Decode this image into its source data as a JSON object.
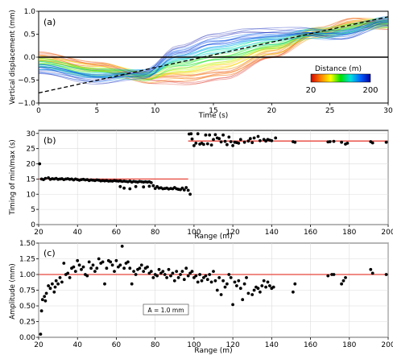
{
  "chart_data": [
    {
      "type": "line",
      "panel_label": "(a)",
      "xlabel": "Time (s)",
      "ylabel": "Vertical displacement (mm)",
      "xlim": [
        0,
        30
      ],
      "ylim": [
        -1.0,
        1.0
      ],
      "xticks": [
        0,
        5,
        10,
        15,
        20,
        25,
        30
      ],
      "xtick_labels": [
        "0",
        "5",
        "10",
        "15",
        "20",
        "25",
        "30"
      ],
      "yticks": [
        -1.0,
        -0.5,
        0.0,
        0.5,
        1.0
      ],
      "ytick_labels": [
        "−1.0",
        "−0.5",
        "0.0",
        "0.5",
        "1.0"
      ],
      "grid": false,
      "colorbar": {
        "title": "Distance (m)",
        "min_label": "20",
        "max_label": "200",
        "range": [
          20,
          200
        ],
        "colormap": [
          "#d00000",
          "#ff8000",
          "#ffff00",
          "#00e000",
          "#00e0e0",
          "#0060ff",
          "#0000a0"
        ]
      },
      "series": [
        {
          "style": "dashed",
          "color": "#000000",
          "x": [
            0,
            30
          ],
          "y": [
            -0.78,
            0.88
          ]
        },
        {
          "style": "solid",
          "color": "#000000",
          "x": [
            0,
            30
          ],
          "y": [
            0.0,
            0.0
          ]
        },
        {
          "style": "wave-bundle",
          "description_values": {
            "near_distance_curve": {
              "x": [
                0,
                5,
                10,
                13,
                16,
                20,
                24,
                27,
                30
              ],
              "y": [
                0.05,
                -0.15,
                -0.5,
                -0.55,
                -0.45,
                0.0,
                0.55,
                0.8,
                0.7
              ]
            },
            "far_distance_curve": {
              "x": [
                0,
                5,
                9,
                12,
                15,
                18,
                22,
                26,
                30
              ],
              "y": [
                -0.3,
                -0.5,
                -0.35,
                0.2,
                0.45,
                0.55,
                0.55,
                0.45,
                0.8
              ]
            }
          }
        }
      ]
    },
    {
      "type": "scatter",
      "panel_label": "(b)",
      "xlabel": "Range (m)",
      "ylabel": "Timing of min/max (s)",
      "xlim": [
        20,
        200
      ],
      "ylim": [
        0,
        31
      ],
      "xticks": [
        20,
        40,
        60,
        80,
        100,
        120,
        140,
        160,
        180,
        200
      ],
      "xtick_labels": [
        "20",
        "40",
        "60",
        "80",
        "100",
        "120",
        "140",
        "160",
        "180",
        "200"
      ],
      "yticks": [
        0,
        5,
        10,
        15,
        20,
        25,
        30
      ],
      "ytick_labels": [
        "0",
        "5",
        "10",
        "15",
        "20",
        "25",
        "30"
      ],
      "grid": true,
      "reference_lines": [
        {
          "x": [
            20,
            97
          ],
          "y": 15.0,
          "color": "#e8453c"
        },
        {
          "x": [
            97,
            200
          ],
          "y": 27.5,
          "color": "#e8453c"
        }
      ],
      "points": [
        [
          20.5,
          20.0
        ],
        [
          21.5,
          15.0
        ],
        [
          22.5,
          14.8
        ],
        [
          23.5,
          15.2
        ],
        [
          25,
          15.4
        ],
        [
          26,
          14.9
        ],
        [
          27,
          15.1
        ],
        [
          28,
          15.0
        ],
        [
          29,
          15.2
        ],
        [
          30,
          14.9
        ],
        [
          31,
          15.0
        ],
        [
          32,
          15.1
        ],
        [
          33,
          14.8
        ],
        [
          34,
          15.0
        ],
        [
          35,
          15.1
        ],
        [
          36,
          14.9
        ],
        [
          37,
          15.0
        ],
        [
          38,
          14.7
        ],
        [
          39,
          15.0
        ],
        [
          40,
          14.8
        ],
        [
          41,
          14.6
        ],
        [
          42,
          14.8
        ],
        [
          43,
          14.9
        ],
        [
          44,
          14.7
        ],
        [
          45,
          14.8
        ],
        [
          46,
          14.5
        ],
        [
          47,
          14.7
        ],
        [
          48,
          14.6
        ],
        [
          49,
          14.5
        ],
        [
          50,
          14.7
        ],
        [
          51,
          14.6
        ],
        [
          52,
          14.4
        ],
        [
          53,
          14.5
        ],
        [
          54,
          14.4
        ],
        [
          55,
          14.5
        ],
        [
          56,
          14.3
        ],
        [
          57,
          14.4
        ],
        [
          58,
          14.3
        ],
        [
          59,
          14.5
        ],
        [
          60,
          14.4
        ],
        [
          61,
          14.3
        ],
        [
          62,
          14.4
        ],
        [
          63,
          14.2
        ],
        [
          64,
          14.3
        ],
        [
          65,
          14.2
        ],
        [
          66,
          14.1
        ],
        [
          67,
          14.3
        ],
        [
          68,
          14.0
        ],
        [
          69,
          14.2
        ],
        [
          70,
          14.1
        ],
        [
          71,
          14.0
        ],
        [
          72,
          14.2
        ],
        [
          73,
          14.1
        ],
        [
          74,
          14.0
        ],
        [
          75,
          14.1
        ],
        [
          76,
          14.0
        ],
        [
          77,
          14.1
        ],
        [
          78,
          13.8
        ],
        [
          62,
          12.5
        ],
        [
          64,
          12.0
        ],
        [
          67,
          11.8
        ],
        [
          70,
          12.5
        ],
        [
          74,
          12.4
        ],
        [
          77,
          12.6
        ],
        [
          79,
          12.8
        ],
        [
          80,
          11.9
        ],
        [
          81,
          12.5
        ],
        [
          82,
          12.0
        ],
        [
          83,
          12.1
        ],
        [
          84,
          11.8
        ],
        [
          85,
          11.9
        ],
        [
          86,
          12.0
        ],
        [
          87,
          11.7
        ],
        [
          88,
          11.9
        ],
        [
          89,
          11.8
        ],
        [
          90,
          12.2
        ],
        [
          91,
          11.8
        ],
        [
          92,
          11.6
        ],
        [
          93,
          11.5
        ],
        [
          94,
          12.0
        ],
        [
          95,
          11.4
        ],
        [
          96,
          12.2
        ],
        [
          97,
          11.3
        ],
        [
          98,
          10.0
        ],
        [
          97.5,
          29.8
        ],
        [
          98.5,
          29.9
        ],
        [
          99,
          28.2
        ],
        [
          100,
          26.0
        ],
        [
          101,
          26.8
        ],
        [
          102,
          29.9
        ],
        [
          103,
          26.5
        ],
        [
          104,
          26.8
        ],
        [
          105,
          26.4
        ],
        [
          106,
          29.5
        ],
        [
          107,
          26.6
        ],
        [
          108,
          29.5
        ],
        [
          109,
          26.2
        ],
        [
          110,
          28.0
        ],
        [
          111,
          29.6
        ],
        [
          112,
          28.5
        ],
        [
          113,
          28.3
        ],
        [
          114,
          27.2
        ],
        [
          115,
          29.5
        ],
        [
          116,
          27.4
        ],
        [
          117,
          26.3
        ],
        [
          118,
          28.8
        ],
        [
          119,
          27.3
        ],
        [
          120,
          26.0
        ],
        [
          121,
          27.1
        ],
        [
          122,
          27.0
        ],
        [
          123,
          26.8
        ],
        [
          124,
          28.0
        ],
        [
          126,
          27.1
        ],
        [
          128,
          27.5
        ],
        [
          129,
          28.3
        ],
        [
          130,
          27.0
        ],
        [
          131,
          28.5
        ],
        [
          133,
          29.0
        ],
        [
          134,
          27.6
        ],
        [
          136,
          28.0
        ],
        [
          137,
          27.5
        ],
        [
          138,
          28.0
        ],
        [
          139,
          27.8
        ],
        [
          140,
          27.6
        ],
        [
          142,
          28.5
        ],
        [
          151,
          27.3
        ],
        [
          152,
          27.1
        ],
        [
          169,
          27.2
        ],
        [
          170,
          27.3
        ],
        [
          172,
          27.4
        ],
        [
          176,
          27.1
        ],
        [
          178,
          26.5
        ],
        [
          179,
          26.8
        ],
        [
          191,
          27.3
        ],
        [
          192,
          26.9
        ],
        [
          199,
          27.1
        ]
      ]
    },
    {
      "type": "scatter",
      "panel_label": "(c)",
      "xlabel": "Range (m)",
      "ylabel": "Amplitude (mm)",
      "xlim": [
        20,
        200
      ],
      "ylim": [
        0.0,
        1.5
      ],
      "xticks": [
        20,
        40,
        60,
        80,
        100,
        120,
        140,
        160,
        180,
        200
      ],
      "xtick_labels": [
        "20",
        "40",
        "60",
        "80",
        "100",
        "120",
        "140",
        "160",
        "180",
        "200"
      ],
      "yticks": [
        0.0,
        0.25,
        0.5,
        0.75,
        1.0,
        1.25,
        1.5
      ],
      "ytick_labels": [
        "0.00",
        "0.25",
        "0.50",
        "0.75",
        "1.00",
        "1.25",
        "1.50"
      ],
      "grid": true,
      "annotation": "A = 1.0 mm",
      "reference_lines": [
        {
          "x": [
            20,
            200
          ],
          "y": 1.0,
          "color": "#e8453c"
        }
      ],
      "points": [
        [
          21,
          0.05
        ],
        [
          21.5,
          0.42
        ],
        [
          22,
          0.6
        ],
        [
          23,
          0.65
        ],
        [
          23.5,
          0.58
        ],
        [
          24,
          0.7
        ],
        [
          25,
          0.82
        ],
        [
          26,
          0.78
        ],
        [
          27,
          0.85
        ],
        [
          28,
          0.72
        ],
        [
          28.5,
          0.8
        ],
        [
          29,
          0.9
        ],
        [
          30,
          0.85
        ],
        [
          31,
          0.95
        ],
        [
          32,
          0.88
        ],
        [
          33,
          1.18
        ],
        [
          34,
          1.0
        ],
        [
          35,
          1.02
        ],
        [
          36,
          0.95
        ],
        [
          37,
          1.1
        ],
        [
          38,
          1.12
        ],
        [
          39,
          1.05
        ],
        [
          40,
          1.22
        ],
        [
          41,
          1.15
        ],
        [
          42,
          1.08
        ],
        [
          43,
          1.12
        ],
        [
          44,
          1.0
        ],
        [
          45,
          0.98
        ],
        [
          46,
          1.2
        ],
        [
          47,
          1.1
        ],
        [
          48,
          1.15
        ],
        [
          49,
          1.05
        ],
        [
          50,
          1.1
        ],
        [
          51,
          1.25
        ],
        [
          52,
          1.18
        ],
        [
          53,
          1.2
        ],
        [
          54,
          0.85
        ],
        [
          55,
          1.1
        ],
        [
          56,
          1.22
        ],
        [
          57,
          1.2
        ],
        [
          58,
          1.15
        ],
        [
          59,
          1.05
        ],
        [
          60,
          1.22
        ],
        [
          61,
          1.12
        ],
        [
          62,
          1.15
        ],
        [
          63,
          1.45
        ],
        [
          64,
          1.1
        ],
        [
          65,
          1.18
        ],
        [
          66,
          1.2
        ],
        [
          67,
          1.1
        ],
        [
          68,
          0.85
        ],
        [
          69,
          1.05
        ],
        [
          70,
          1.0
        ],
        [
          71,
          1.08
        ],
        [
          72,
          1.1
        ],
        [
          73,
          1.15
        ],
        [
          74,
          1.05
        ],
        [
          75,
          1.1
        ],
        [
          76,
          1.12
        ],
        [
          77,
          1.02
        ],
        [
          78,
          1.05
        ],
        [
          79,
          0.95
        ],
        [
          80,
          1.0
        ],
        [
          81,
          0.98
        ],
        [
          82,
          1.08
        ],
        [
          83,
          1.02
        ],
        [
          84,
          1.05
        ],
        [
          85,
          1.0
        ],
        [
          86,
          0.95
        ],
        [
          87,
          1.08
        ],
        [
          88,
          0.98
        ],
        [
          89,
          1.02
        ],
        [
          90,
          0.9
        ],
        [
          91,
          1.05
        ],
        [
          92,
          0.95
        ],
        [
          93,
          1.0
        ],
        [
          94,
          1.05
        ],
        [
          95,
          0.92
        ],
        [
          96,
          1.1
        ],
        [
          97,
          0.98
        ],
        [
          98,
          1.02
        ],
        [
          99,
          1.05
        ],
        [
          100,
          0.95
        ],
        [
          101,
          0.98
        ],
        [
          102,
          0.88
        ],
        [
          103,
          1.0
        ],
        [
          104,
          0.9
        ],
        [
          105,
          0.95
        ],
        [
          106,
          0.98
        ],
        [
          107,
          0.92
        ],
        [
          108,
          1.0
        ],
        [
          109,
          0.88
        ],
        [
          110,
          1.05
        ],
        [
          111,
          0.9
        ],
        [
          112,
          0.75
        ],
        [
          113,
          0.95
        ],
        [
          114,
          0.68
        ],
        [
          115,
          0.9
        ],
        [
          116,
          0.8
        ],
        [
          117,
          0.85
        ],
        [
          118,
          1.0
        ],
        [
          119,
          0.95
        ],
        [
          120,
          0.52
        ],
        [
          121,
          0.88
        ],
        [
          122,
          0.82
        ],
        [
          123,
          0.9
        ],
        [
          124,
          0.78
        ],
        [
          125,
          0.6
        ],
        [
          126,
          0.85
        ],
        [
          127,
          0.95
        ],
        [
          128,
          0.7
        ],
        [
          130,
          0.68
        ],
        [
          131,
          0.75
        ],
        [
          132,
          0.8
        ],
        [
          133,
          0.78
        ],
        [
          134,
          0.72
        ],
        [
          135,
          0.82
        ],
        [
          136,
          0.9
        ],
        [
          137,
          0.8
        ],
        [
          138,
          0.88
        ],
        [
          139,
          0.82
        ],
        [
          140,
          0.78
        ],
        [
          141,
          0.8
        ],
        [
          151,
          0.72
        ],
        [
          152,
          0.85
        ],
        [
          169,
          0.98
        ],
        [
          171,
          1.0
        ],
        [
          172,
          1.0
        ],
        [
          176,
          0.85
        ],
        [
          177,
          0.9
        ],
        [
          178,
          0.95
        ],
        [
          191,
          1.08
        ],
        [
          192,
          1.02
        ],
        [
          199,
          1.0
        ]
      ]
    }
  ]
}
